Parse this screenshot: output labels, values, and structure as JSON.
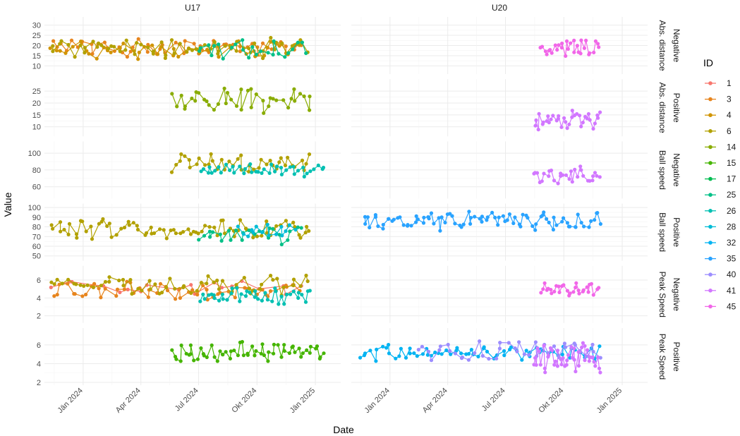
{
  "chart_data": {
    "type": "line",
    "xlabel": "Date",
    "ylabel": "Value",
    "legend": {
      "title": "ID",
      "position": "right",
      "items": [
        {
          "id": "1",
          "color": "#F8766D"
        },
        {
          "id": "3",
          "color": "#E7851E"
        },
        {
          "id": "4",
          "color": "#D09400"
        },
        {
          "id": "6",
          "color": "#B2A100"
        },
        {
          "id": "14",
          "color": "#89AC00"
        },
        {
          "id": "15",
          "color": "#45B500"
        },
        {
          "id": "17",
          "color": "#00BC51"
        },
        {
          "id": "25",
          "color": "#00C087"
        },
        {
          "id": "26",
          "color": "#00C0B2"
        },
        {
          "id": "28",
          "color": "#00BCD6"
        },
        {
          "id": "32",
          "color": "#00B3F2"
        },
        {
          "id": "35",
          "color": "#29A3FF"
        },
        {
          "id": "40",
          "color": "#9C8DFF"
        },
        {
          "id": "41",
          "color": "#D277FF"
        },
        {
          "id": "45",
          "color": "#F166E8"
        }
      ]
    },
    "columns": [
      "U17",
      "U20"
    ],
    "x_range": [
      "2023-11-01",
      "2025-02-10"
    ],
    "x_ticks": [
      {
        "date": "2024-01-01",
        "label": "Jän 2024"
      },
      {
        "date": "2024-04-01",
        "label": "Apr 2024"
      },
      {
        "date": "2024-07-01",
        "label": "Jul 2024"
      },
      {
        "date": "2024-10-01",
        "label": "Okt 2024"
      },
      {
        "date": "2025-01-01",
        "label": "Jän 2025"
      }
    ],
    "rows": [
      {
        "label": "Abs. distance\nNegative",
        "ylim": [
          6,
          34
        ],
        "yticks": [
          10,
          15,
          20,
          25,
          30
        ],
        "series": [
          {
            "col": "U17",
            "id": "3",
            "color": "#E7851E",
            "start": "2023-11-15",
            "end": "2024-12-10",
            "base": 19,
            "amp": 3.5,
            "n": 55,
            "seed": 3
          },
          {
            "col": "U17",
            "id": "4",
            "color": "#D09400",
            "start": "2023-11-10",
            "end": "2024-12-12",
            "base": 18,
            "amp": 3.5,
            "n": 45,
            "seed": 4
          },
          {
            "col": "U17",
            "id": "6",
            "color": "#B2A100",
            "start": "2023-11-12",
            "end": "2024-12-20",
            "base": 19,
            "amp": 4,
            "n": 60,
            "seed": 6
          },
          {
            "col": "U17",
            "id": "25",
            "color": "#00C087",
            "start": "2024-07-01",
            "end": "2024-12-20",
            "base": 18,
            "amp": 4,
            "n": 25,
            "seed": 25
          },
          {
            "col": "U20",
            "id": "45",
            "color": "#F166E8",
            "start": "2024-08-25",
            "end": "2024-11-25",
            "base": 19,
            "amp": 3.5,
            "n": 30,
            "seed": 45
          }
        ]
      },
      {
        "label": "Abs. distance\nPositive",
        "ylim": [
          6,
          30
        ],
        "yticks": [
          10,
          15,
          20,
          25
        ],
        "series": [
          {
            "col": "U17",
            "id": "14",
            "color": "#89AC00",
            "start": "2024-05-20",
            "end": "2024-12-25",
            "base": 21,
            "amp": 4,
            "n": 40,
            "seed": 14
          },
          {
            "col": "U20",
            "id": "41",
            "color": "#D277FF",
            "start": "2024-08-15",
            "end": "2024-11-28",
            "base": 13,
            "amp": 3.5,
            "n": 35,
            "seed": 41
          }
        ]
      },
      {
        "label": "Ball speed\nNegative",
        "ylim": [
          46,
          114
        ],
        "yticks": [
          60,
          80,
          100
        ],
        "series": [
          {
            "col": "U17",
            "id": "6",
            "color": "#B2A100",
            "start": "2024-05-18",
            "end": "2024-12-25",
            "base": 88,
            "amp": 9,
            "n": 40,
            "seed": 61
          },
          {
            "col": "U17",
            "id": "26",
            "color": "#00C0B2",
            "start": "2024-07-05",
            "end": "2025-01-15",
            "base": 80,
            "amp": 6,
            "n": 40,
            "seed": 26
          },
          {
            "col": "U20",
            "id": "41",
            "color": "#D277FF",
            "start": "2024-08-15",
            "end": "2024-11-28",
            "base": 74,
            "amp": 8,
            "n": 30,
            "seed": 411
          }
        ]
      },
      {
        "label": "Ball speed\nPositive",
        "ylim": [
          45,
          104
        ],
        "yticks": [
          50,
          60,
          70,
          80,
          90,
          100
        ],
        "series": [
          {
            "col": "U17",
            "id": "6",
            "color": "#B2A100",
            "start": "2023-11-12",
            "end": "2024-12-25",
            "base": 78,
            "amp": 8,
            "n": 80,
            "seed": 62
          },
          {
            "col": "U17",
            "id": "25",
            "color": "#00C087",
            "start": "2024-07-01",
            "end": "2024-12-10",
            "base": 72,
            "amp": 8,
            "n": 25,
            "seed": 251
          },
          {
            "col": "U17",
            "id": "28",
            "color": "#00BCD6",
            "start": "2024-09-01",
            "end": "2024-12-01",
            "base": 76,
            "amp": 6,
            "n": 15,
            "seed": 28
          },
          {
            "col": "U20",
            "id": "35",
            "color": "#29A3FF",
            "start": "2023-11-20",
            "end": "2024-11-28",
            "base": 86,
            "amp": 8,
            "n": 90,
            "seed": 35
          }
        ]
      },
      {
        "label": "Peak Speed\nNegative",
        "ylim": [
          1.2,
          7.6
        ],
        "yticks": [
          2,
          4,
          6
        ],
        "series": [
          {
            "col": "U17",
            "id": "1",
            "color": "#F8766D",
            "start": "2023-11-10",
            "end": "2024-12-10",
            "base": 5.2,
            "amp": 0.7,
            "n": 20,
            "seed": 1
          },
          {
            "col": "U17",
            "id": "3",
            "color": "#E7851E",
            "start": "2023-11-15",
            "end": "2024-12-10",
            "base": 4.8,
            "amp": 0.8,
            "n": 55,
            "seed": 31
          },
          {
            "col": "U17",
            "id": "6",
            "color": "#B2A100",
            "start": "2023-11-12",
            "end": "2024-12-20",
            "base": 5.4,
            "amp": 0.9,
            "n": 60,
            "seed": 63
          },
          {
            "col": "U17",
            "id": "26",
            "color": "#00C0B2",
            "start": "2024-07-01",
            "end": "2024-12-25",
            "base": 4.2,
            "amp": 0.8,
            "n": 40,
            "seed": 261
          },
          {
            "col": "U20",
            "id": "45",
            "color": "#F166E8",
            "start": "2024-08-25",
            "end": "2024-11-25",
            "base": 5,
            "amp": 0.6,
            "n": 30,
            "seed": 451
          }
        ]
      },
      {
        "label": "Peak Speed\nPositive",
        "ylim": [
          1.7,
          7.8
        ],
        "yticks": [
          2,
          4,
          6
        ],
        "series": [
          {
            "col": "U17",
            "id": "15",
            "color": "#45B500",
            "start": "2024-05-20",
            "end": "2025-01-15",
            "base": 5.3,
            "amp": 0.8,
            "n": 60,
            "seed": 15
          },
          {
            "col": "U20",
            "id": "32",
            "color": "#00B3F2",
            "start": "2023-11-15",
            "end": "2024-11-28",
            "base": 5.2,
            "amp": 0.7,
            "n": 70,
            "seed": 32
          },
          {
            "col": "U20",
            "id": "40",
            "color": "#9C8DFF",
            "start": "2024-02-15",
            "end": "2024-11-28",
            "base": 5.5,
            "amp": 1.0,
            "n": 40,
            "seed": 40
          },
          {
            "col": "U20",
            "id": "41",
            "color": "#D277FF",
            "start": "2024-08-15",
            "end": "2024-11-28",
            "base": 4.6,
            "amp": 1.3,
            "n": 45,
            "seed": 412
          }
        ]
      }
    ]
  }
}
